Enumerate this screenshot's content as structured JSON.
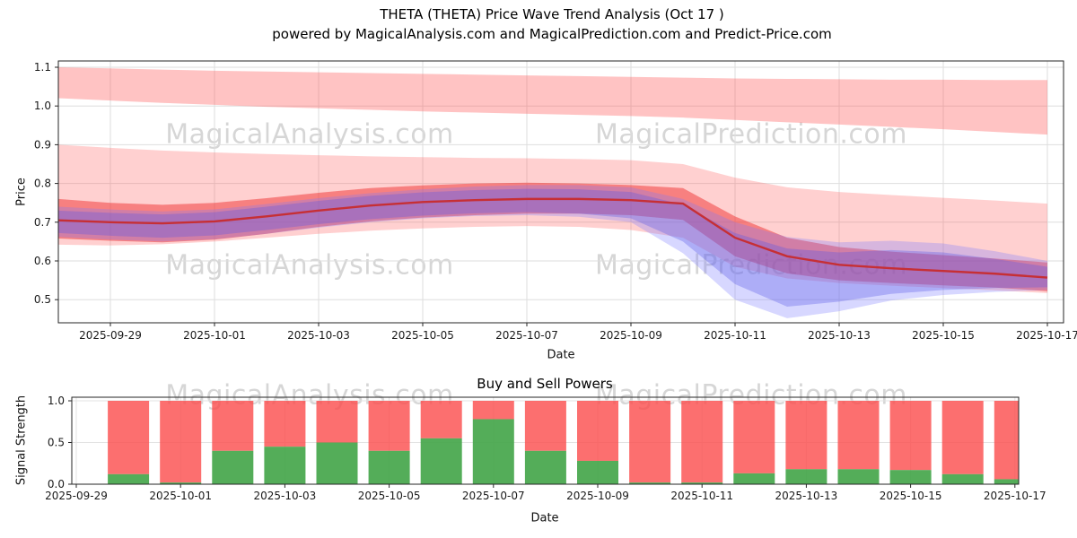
{
  "header": {
    "title_line1": "THETA (THETA) Price Wave Trend Analysis (Oct 17 )",
    "title_line2": "powered by MagicalAnalysis.com and MagicalPrediction.com and Predict-Price.com"
  },
  "watermarks": {
    "left": "MagicalAnalysis.com",
    "right": "MagicalPrediction.com"
  },
  "chart_data": [
    {
      "type": "area",
      "title": "THETA (THETA) Price Wave Trend Analysis (Oct 17 )",
      "subtitle": "powered by MagicalAnalysis.com and MagicalPrediction.com and Predict-Price.com",
      "xlabel": "Date",
      "ylabel": "Price",
      "grid": true,
      "ylim": [
        0.44,
        1.116
      ],
      "y_ticks": [
        0.5,
        0.6,
        0.7,
        0.8,
        0.9,
        1.0,
        1.1
      ],
      "x_dates": [
        "2025-09-28",
        "2025-09-29",
        "2025-09-30",
        "2025-10-01",
        "2025-10-02",
        "2025-10-03",
        "2025-10-04",
        "2025-10-05",
        "2025-10-06",
        "2025-10-07",
        "2025-10-08",
        "2025-10-09",
        "2025-10-10",
        "2025-10-11",
        "2025-10-12",
        "2025-10-13",
        "2025-10-14",
        "2025-10-15",
        "2025-10-16",
        "2025-10-17"
      ],
      "x_tick_days": [
        1,
        3,
        5,
        7,
        9,
        11,
        13,
        15,
        17,
        19
      ],
      "x_tick_labels": [
        "2025-09-29",
        "2025-10-01",
        "2025-10-03",
        "2025-10-05",
        "2025-10-07",
        "2025-10-09",
        "2025-10-11",
        "2025-10-13",
        "2025-10-15",
        "2025-10-17"
      ],
      "line": {
        "name": "price-trend-line",
        "color": "#c62f35",
        "values": [
          0.705,
          0.7,
          0.697,
          0.702,
          0.715,
          0.73,
          0.743,
          0.752,
          0.757,
          0.76,
          0.76,
          0.757,
          0.748,
          0.66,
          0.612,
          0.59,
          0.581,
          0.574,
          0.567,
          0.557
        ]
      },
      "bands": [
        {
          "name": "upper-resistance-band",
          "color": "#ff5252",
          "opacity": 0.35,
          "upper": [
            1.1,
            1.097,
            1.094,
            1.091,
            1.089,
            1.087,
            1.085,
            1.083,
            1.081,
            1.079,
            1.077,
            1.075,
            1.073,
            1.071,
            1.07,
            1.069,
            1.068,
            1.068,
            1.067,
            1.067
          ],
          "lower": [
            1.02,
            1.014,
            1.008,
            1.003,
            0.998,
            0.994,
            0.99,
            0.986,
            0.983,
            0.98,
            0.977,
            0.974,
            0.97,
            0.964,
            0.958,
            0.952,
            0.946,
            0.94,
            0.933,
            0.926
          ]
        },
        {
          "name": "main-forecast-band",
          "color": "#ff5252",
          "opacity": 0.27,
          "upper": [
            0.9,
            0.892,
            0.885,
            0.88,
            0.876,
            0.873,
            0.87,
            0.868,
            0.866,
            0.865,
            0.863,
            0.86,
            0.85,
            0.815,
            0.79,
            0.778,
            0.77,
            0.763,
            0.756,
            0.748
          ],
          "lower": [
            0.642,
            0.64,
            0.643,
            0.65,
            0.66,
            0.67,
            0.678,
            0.684,
            0.688,
            0.69,
            0.688,
            0.68,
            0.66,
            0.585,
            0.555,
            0.543,
            0.536,
            0.53,
            0.524,
            0.517
          ]
        },
        {
          "name": "inner-red-band",
          "color": "#f03030",
          "opacity": 0.5,
          "upper": [
            0.76,
            0.75,
            0.745,
            0.75,
            0.762,
            0.776,
            0.788,
            0.795,
            0.8,
            0.802,
            0.8,
            0.796,
            0.788,
            0.715,
            0.66,
            0.636,
            0.624,
            0.615,
            0.606,
            0.596
          ],
          "lower": [
            0.658,
            0.652,
            0.648,
            0.655,
            0.67,
            0.688,
            0.702,
            0.712,
            0.718,
            0.722,
            0.722,
            0.718,
            0.706,
            0.612,
            0.568,
            0.55,
            0.543,
            0.537,
            0.531,
            0.522
          ]
        },
        {
          "name": "blue-wave-band-outer",
          "color": "#7b7bff",
          "opacity": 0.3,
          "upper": [
            0.74,
            0.733,
            0.728,
            0.733,
            0.747,
            0.762,
            0.775,
            0.785,
            0.792,
            0.796,
            0.796,
            0.79,
            0.76,
            0.7,
            0.662,
            0.648,
            0.652,
            0.645,
            0.625,
            0.6
          ],
          "lower": [
            0.662,
            0.655,
            0.65,
            0.656,
            0.67,
            0.686,
            0.7,
            0.71,
            0.716,
            0.718,
            0.714,
            0.7,
            0.62,
            0.5,
            0.452,
            0.47,
            0.498,
            0.512,
            0.52,
            0.525
          ]
        },
        {
          "name": "blue-wave-band-inner",
          "color": "#5858e8",
          "opacity": 0.33,
          "upper": [
            0.73,
            0.724,
            0.72,
            0.726,
            0.74,
            0.755,
            0.768,
            0.777,
            0.783,
            0.786,
            0.785,
            0.778,
            0.745,
            0.672,
            0.632,
            0.622,
            0.628,
            0.622,
            0.605,
            0.585
          ],
          "lower": [
            0.672,
            0.665,
            0.66,
            0.666,
            0.68,
            0.695,
            0.708,
            0.717,
            0.723,
            0.726,
            0.722,
            0.71,
            0.65,
            0.54,
            0.482,
            0.495,
            0.515,
            0.525,
            0.53,
            0.532
          ]
        }
      ]
    },
    {
      "type": "bar",
      "stacked": true,
      "title": "Buy and Sell Powers",
      "xlabel": "Date",
      "ylabel": "Signal Strength",
      "ylim": [
        0,
        1.043
      ],
      "y_ticks": [
        0.0,
        0.5,
        1.0
      ],
      "categories": [
        "2025-09-30",
        "2025-10-01",
        "2025-10-02",
        "2025-10-03",
        "2025-10-04",
        "2025-10-05",
        "2025-10-06",
        "2025-10-07",
        "2025-10-08",
        "2025-10-09",
        "2025-10-10",
        "2025-10-11",
        "2025-10-12",
        "2025-10-13",
        "2025-10-14",
        "2025-10-15",
        "2025-10-16",
        "2025-10-17"
      ],
      "series": [
        {
          "name": "Buy",
          "color": "#41a447",
          "values": [
            0.12,
            0.02,
            0.4,
            0.45,
            0.5,
            0.4,
            0.55,
            0.78,
            0.4,
            0.28,
            0.02,
            0.02,
            0.13,
            0.18,
            0.18,
            0.17,
            0.12,
            0.06
          ]
        },
        {
          "name": "Sell",
          "color": "#fb4b4b",
          "values": [
            0.88,
            0.98,
            0.6,
            0.55,
            0.5,
            0.6,
            0.45,
            0.22,
            0.6,
            0.72,
            0.98,
            0.98,
            0.87,
            0.82,
            0.82,
            0.83,
            0.88,
            0.94
          ]
        }
      ],
      "x_tick_days": [
        0,
        2,
        4,
        6,
        8,
        10,
        12,
        14,
        16,
        18
      ],
      "x_tick_labels": [
        "2025-09-29",
        "2025-10-01",
        "2025-10-03",
        "2025-10-05",
        "2025-10-07",
        "2025-10-09",
        "2025-10-11",
        "2025-10-13",
        "2025-10-15",
        "2025-10-17"
      ]
    }
  ]
}
